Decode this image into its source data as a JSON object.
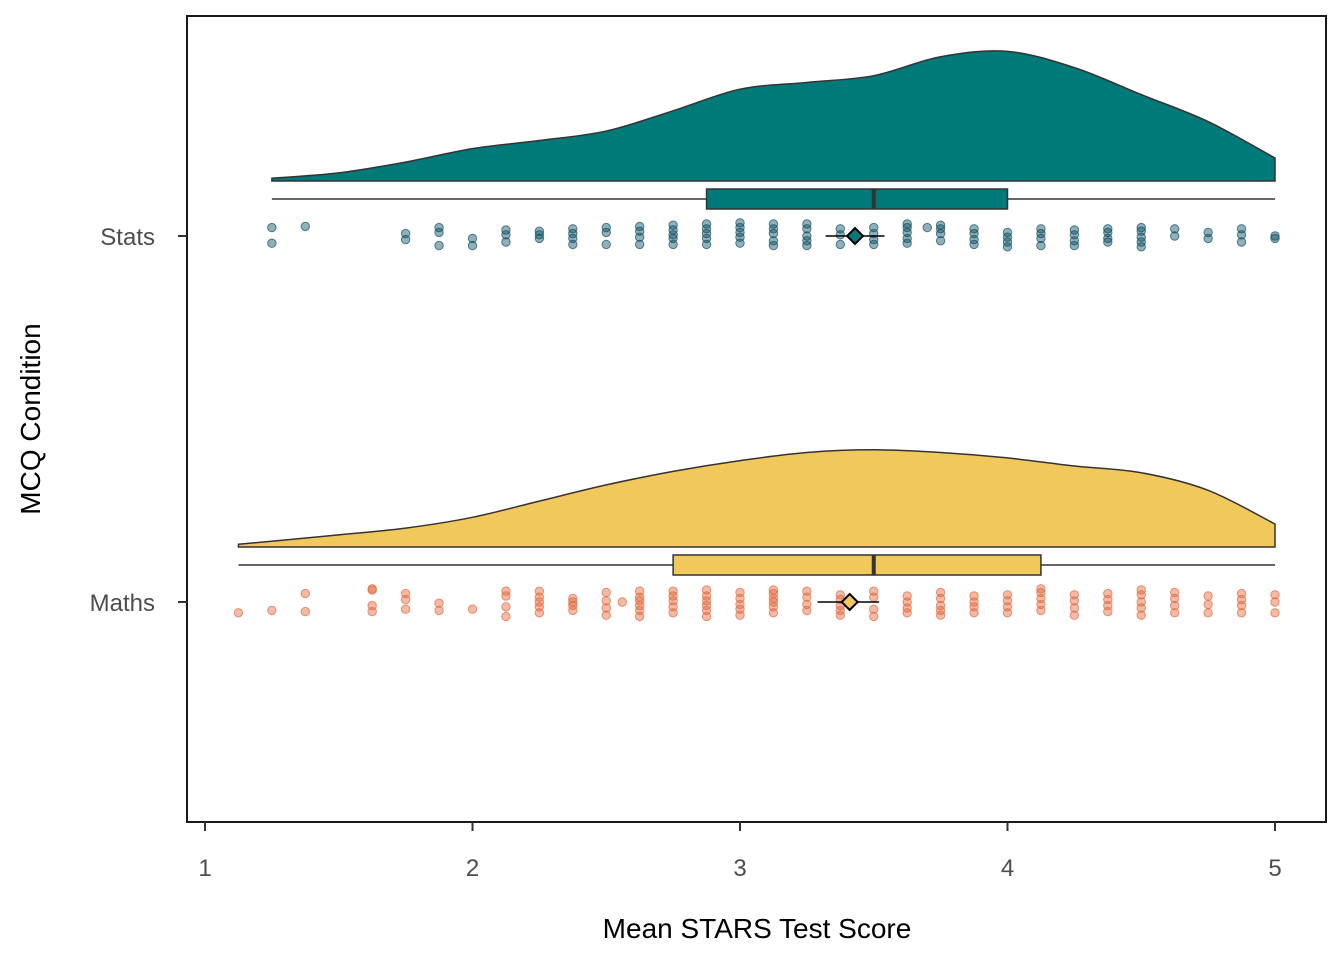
{
  "chart_data": {
    "type": "raincloud",
    "xlabel": "Mean STARS Test Score",
    "ylabel": "MCQ Condition",
    "xlim": [
      1,
      5
    ],
    "x_ticks": [
      1,
      2,
      3,
      4,
      5
    ],
    "grid": false,
    "legend": "none",
    "categories": [
      {
        "name": "Stats",
        "cloud_color": "#007a78",
        "box_color": "#007a78",
        "dot_color": "#0e4f63",
        "mean_color": "#007a78",
        "density": [
          [
            1.25,
            0.02
          ],
          [
            1.5,
            0.06
          ],
          [
            1.75,
            0.14
          ],
          [
            2.0,
            0.24
          ],
          [
            2.25,
            0.3
          ],
          [
            2.5,
            0.37
          ],
          [
            2.75,
            0.52
          ],
          [
            3.0,
            0.68
          ],
          [
            3.25,
            0.73
          ],
          [
            3.5,
            0.78
          ],
          [
            3.75,
            0.92
          ],
          [
            4.0,
            0.96
          ],
          [
            4.25,
            0.84
          ],
          [
            4.5,
            0.64
          ],
          [
            4.75,
            0.44
          ],
          [
            5.0,
            0.17
          ]
        ],
        "box": {
          "min": 1.25,
          "q1": 2.875,
          "median": 3.5,
          "q3": 4.0,
          "max": 5.0
        },
        "mean": 3.43,
        "ci": [
          3.32,
          3.54
        ],
        "points": [
          [
            1.25,
            0.3
          ],
          [
            1.25,
            -0.35
          ],
          [
            1.375,
            -0.4
          ],
          [
            1.75,
            0.15
          ],
          [
            1.75,
            -0.1
          ],
          [
            1.875,
            0.4
          ],
          [
            1.875,
            -0.15
          ],
          [
            1.875,
            -0.35
          ],
          [
            2.0,
            0.4
          ],
          [
            2.0,
            0.1
          ],
          [
            2.125,
            0.25
          ],
          [
            2.125,
            -0.05
          ],
          [
            2.125,
            -0.25
          ],
          [
            2.25,
            0.1
          ],
          [
            2.25,
            -0.05
          ],
          [
            2.25,
            -0.2
          ],
          [
            2.375,
            0.35
          ],
          [
            2.375,
            0.1
          ],
          [
            2.375,
            -0.1
          ],
          [
            2.375,
            -0.3
          ],
          [
            2.5,
            0.35
          ],
          [
            2.5,
            -0.15
          ],
          [
            2.5,
            -0.35
          ],
          [
            2.625,
            0.35
          ],
          [
            2.625,
            0.05
          ],
          [
            2.625,
            -0.2
          ],
          [
            2.625,
            -0.4
          ],
          [
            2.75,
            0.35
          ],
          [
            2.75,
            0.1
          ],
          [
            2.75,
            -0.05
          ],
          [
            2.75,
            -0.25
          ],
          [
            2.75,
            -0.45
          ],
          [
            2.875,
            0.35
          ],
          [
            2.875,
            0.1
          ],
          [
            2.875,
            -0.1
          ],
          [
            2.875,
            -0.3
          ],
          [
            2.875,
            -0.5
          ],
          [
            3.0,
            0.3
          ],
          [
            3.0,
            0.05
          ],
          [
            3.0,
            -0.15
          ],
          [
            3.0,
            -0.35
          ],
          [
            3.0,
            -0.55
          ],
          [
            3.125,
            0.4
          ],
          [
            3.125,
            0.2
          ],
          [
            3.125,
            -0.1
          ],
          [
            3.125,
            -0.3
          ],
          [
            3.125,
            -0.5
          ],
          [
            3.25,
            0.4
          ],
          [
            3.25,
            0.2
          ],
          [
            3.25,
            0.0
          ],
          [
            3.25,
            -0.3
          ],
          [
            3.25,
            -0.5
          ],
          [
            3.375,
            0.35
          ],
          [
            3.375,
            -0.05
          ],
          [
            3.375,
            -0.3
          ],
          [
            3.5,
            0.35
          ],
          [
            3.5,
            0.15
          ],
          [
            3.5,
            -0.1
          ],
          [
            3.5,
            -0.35
          ],
          [
            3.625,
            0.3
          ],
          [
            3.625,
            0.1
          ],
          [
            3.625,
            -0.15
          ],
          [
            3.625,
            -0.35
          ],
          [
            3.625,
            -0.5
          ],
          [
            3.75,
            0.2
          ],
          [
            3.75,
            -0.1
          ],
          [
            3.75,
            -0.3
          ],
          [
            3.75,
            -0.45
          ],
          [
            3.7,
            -0.35
          ],
          [
            3.875,
            0.35
          ],
          [
            3.875,
            0.15
          ],
          [
            3.875,
            -0.1
          ],
          [
            3.875,
            -0.3
          ],
          [
            4.0,
            0.45
          ],
          [
            4.0,
            0.25
          ],
          [
            4.0,
            0.05
          ],
          [
            4.0,
            -0.15
          ],
          [
            4.125,
            0.4
          ],
          [
            4.125,
            0.1
          ],
          [
            4.125,
            -0.1
          ],
          [
            4.125,
            -0.3
          ],
          [
            4.25,
            0.4
          ],
          [
            4.25,
            0.2
          ],
          [
            4.25,
            -0.05
          ],
          [
            4.25,
            -0.25
          ],
          [
            4.375,
            0.25
          ],
          [
            4.375,
            0.1
          ],
          [
            4.375,
            -0.15
          ],
          [
            4.375,
            -0.3
          ],
          [
            4.5,
            0.45
          ],
          [
            4.5,
            0.25
          ],
          [
            4.5,
            0.05
          ],
          [
            4.5,
            -0.2
          ],
          [
            4.5,
            -0.35
          ],
          [
            4.625,
            0.0
          ],
          [
            4.625,
            -0.3
          ],
          [
            4.75,
            0.1
          ],
          [
            4.75,
            -0.15
          ],
          [
            4.875,
            0.25
          ],
          [
            4.875,
            -0.05
          ],
          [
            4.875,
            -0.3
          ],
          [
            5.0,
            0.1
          ],
          [
            5.0,
            0.0
          ]
        ]
      },
      {
        "name": "Maths",
        "cloud_color": "#f1c85c",
        "box_color": "#f1c85c",
        "dot_color": "#e2683c",
        "mean_color": "#f1c85c",
        "density": [
          [
            1.125,
            0.02
          ],
          [
            1.5,
            0.09
          ],
          [
            1.75,
            0.14
          ],
          [
            2.0,
            0.22
          ],
          [
            2.25,
            0.34
          ],
          [
            2.5,
            0.46
          ],
          [
            2.75,
            0.56
          ],
          [
            3.0,
            0.64
          ],
          [
            3.25,
            0.7
          ],
          [
            3.5,
            0.72
          ],
          [
            3.75,
            0.7
          ],
          [
            4.0,
            0.66
          ],
          [
            4.25,
            0.6
          ],
          [
            4.5,
            0.55
          ],
          [
            4.75,
            0.42
          ],
          [
            5.0,
            0.17
          ]
        ],
        "box": {
          "min": 1.125,
          "q1": 2.75,
          "median": 3.5,
          "q3": 4.125,
          "max": 5.0
        },
        "mean": 3.41,
        "ci": [
          3.29,
          3.52
        ],
        "points": [
          [
            1.125,
            0.45
          ],
          [
            1.25,
            0.35
          ],
          [
            1.375,
            0.4
          ],
          [
            1.375,
            -0.35
          ],
          [
            1.625,
            0.4
          ],
          [
            1.625,
            0.15
          ],
          [
            1.625,
            -0.5
          ],
          [
            1.625,
            -0.55
          ],
          [
            1.75,
            0.3
          ],
          [
            1.75,
            -0.1
          ],
          [
            1.75,
            -0.35
          ],
          [
            1.875,
            0.35
          ],
          [
            1.875,
            0.05
          ],
          [
            2.0,
            0.3
          ],
          [
            2.125,
            0.6
          ],
          [
            2.125,
            0.2
          ],
          [
            2.125,
            -0.25
          ],
          [
            2.125,
            -0.45
          ],
          [
            2.25,
            0.45
          ],
          [
            2.25,
            0.2
          ],
          [
            2.25,
            0.0
          ],
          [
            2.25,
            -0.2
          ],
          [
            2.25,
            -0.45
          ],
          [
            2.375,
            0.35
          ],
          [
            2.375,
            0.15
          ],
          [
            2.375,
            0.0
          ],
          [
            2.375,
            -0.15
          ],
          [
            2.5,
            0.55
          ],
          [
            2.5,
            0.25
          ],
          [
            2.5,
            -0.05
          ],
          [
            2.5,
            -0.4
          ],
          [
            2.56,
            0.0
          ],
          [
            2.625,
            0.6
          ],
          [
            2.625,
            0.35
          ],
          [
            2.625,
            0.15
          ],
          [
            2.625,
            -0.05
          ],
          [
            2.625,
            -0.2
          ],
          [
            2.625,
            -0.45
          ],
          [
            2.75,
            0.45
          ],
          [
            2.75,
            0.2
          ],
          [
            2.75,
            -0.05
          ],
          [
            2.75,
            -0.25
          ],
          [
            2.75,
            -0.45
          ],
          [
            2.875,
            0.6
          ],
          [
            2.875,
            0.35
          ],
          [
            2.875,
            0.15
          ],
          [
            2.875,
            -0.05
          ],
          [
            2.875,
            -0.25
          ],
          [
            2.875,
            -0.5
          ],
          [
            3.0,
            0.55
          ],
          [
            3.0,
            0.3
          ],
          [
            3.0,
            0.1
          ],
          [
            3.0,
            -0.15
          ],
          [
            3.0,
            -0.4
          ],
          [
            3.125,
            0.45
          ],
          [
            3.125,
            0.2
          ],
          [
            3.125,
            0.0
          ],
          [
            3.125,
            -0.15
          ],
          [
            3.125,
            -0.35
          ],
          [
            3.125,
            -0.5
          ],
          [
            3.25,
            0.35
          ],
          [
            3.25,
            0.1
          ],
          [
            3.25,
            -0.2
          ],
          [
            3.25,
            -0.45
          ],
          [
            3.375,
            0.55
          ],
          [
            3.375,
            0.35
          ],
          [
            3.375,
            0.15
          ],
          [
            3.375,
            -0.1
          ],
          [
            3.375,
            -0.3
          ],
          [
            3.5,
            0.6
          ],
          [
            3.5,
            0.3
          ],
          [
            3.5,
            -0.2
          ],
          [
            3.5,
            -0.45
          ],
          [
            3.625,
            0.45
          ],
          [
            3.625,
            0.25
          ],
          [
            3.625,
            0.0
          ],
          [
            3.625,
            -0.25
          ],
          [
            3.75,
            0.55
          ],
          [
            3.75,
            0.35
          ],
          [
            3.75,
            0.15
          ],
          [
            3.75,
            -0.15
          ],
          [
            3.75,
            -0.4
          ],
          [
            3.875,
            0.45
          ],
          [
            3.875,
            0.2
          ],
          [
            3.875,
            0.0
          ],
          [
            3.875,
            -0.25
          ],
          [
            4.0,
            0.45
          ],
          [
            4.0,
            0.2
          ],
          [
            4.0,
            -0.05
          ],
          [
            4.0,
            -0.3
          ],
          [
            4.125,
            0.35
          ],
          [
            4.125,
            0.1
          ],
          [
            4.125,
            -0.15
          ],
          [
            4.125,
            -0.4
          ],
          [
            4.125,
            -0.55
          ],
          [
            4.25,
            0.55
          ],
          [
            4.25,
            0.25
          ],
          [
            4.25,
            -0.05
          ],
          [
            4.25,
            -0.3
          ],
          [
            4.375,
            0.4
          ],
          [
            4.375,
            0.15
          ],
          [
            4.375,
            -0.1
          ],
          [
            4.375,
            -0.35
          ],
          [
            4.5,
            0.55
          ],
          [
            4.5,
            0.25
          ],
          [
            4.5,
            0.0
          ],
          [
            4.5,
            -0.3
          ],
          [
            4.5,
            -0.5
          ],
          [
            4.625,
            0.45
          ],
          [
            4.625,
            0.15
          ],
          [
            4.625,
            -0.15
          ],
          [
            4.625,
            -0.4
          ],
          [
            4.75,
            0.45
          ],
          [
            4.75,
            0.1
          ],
          [
            4.75,
            -0.25
          ],
          [
            4.875,
            0.45
          ],
          [
            4.875,
            0.15
          ],
          [
            4.875,
            -0.1
          ],
          [
            4.875,
            -0.35
          ],
          [
            5.0,
            0.45
          ],
          [
            5.0,
            0.0
          ],
          [
            5.0,
            -0.3
          ]
        ]
      }
    ]
  }
}
